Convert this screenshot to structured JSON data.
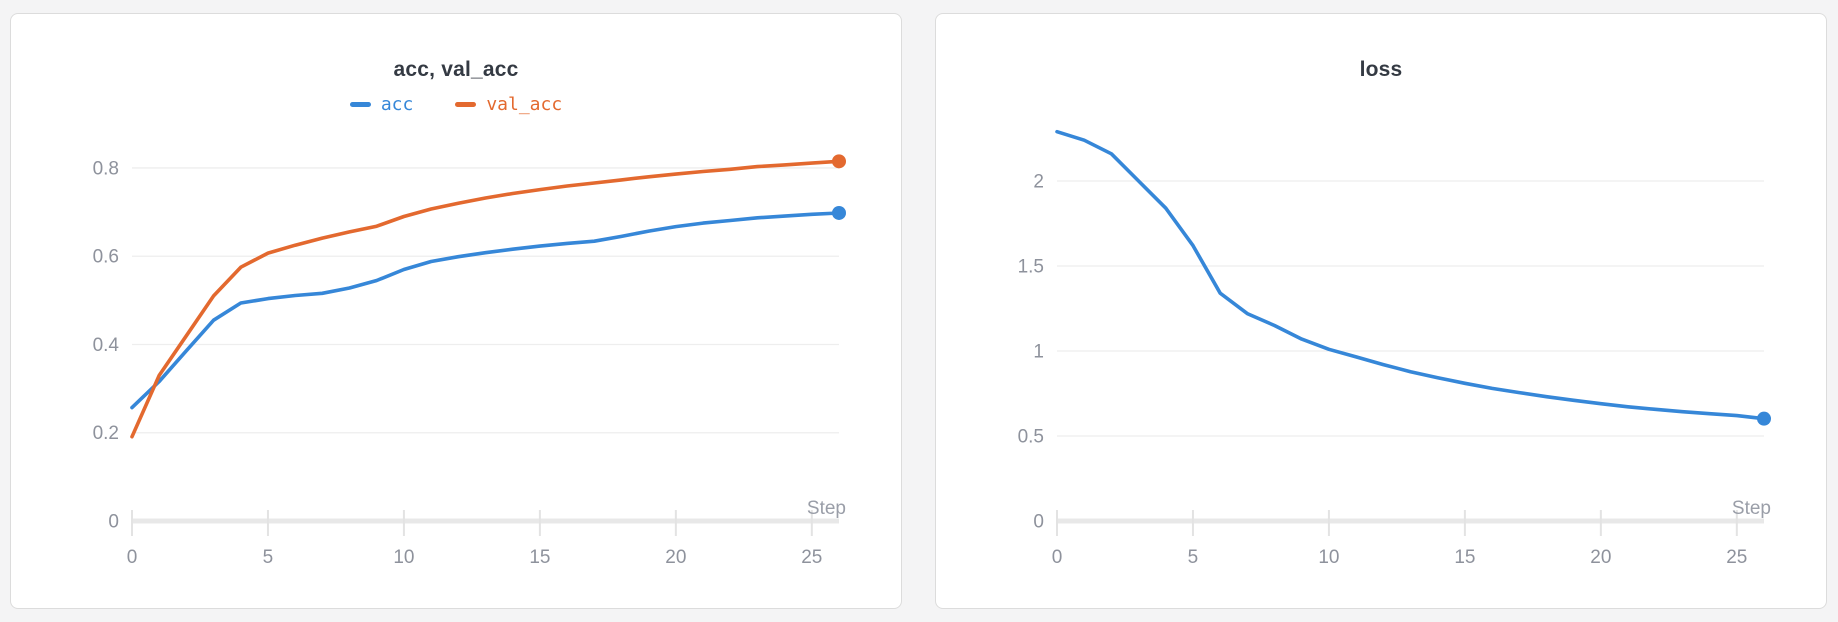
{
  "page": {
    "background": "#f4f4f5"
  },
  "chart_data": [
    {
      "type": "line",
      "title": "acc, val_acc",
      "xlabel": "Step",
      "x": [
        0,
        1,
        2,
        3,
        4,
        5,
        6,
        7,
        8,
        9,
        10,
        11,
        12,
        13,
        14,
        15,
        16,
        17,
        18,
        19,
        20,
        21,
        22,
        23,
        24,
        25,
        26
      ],
      "series": [
        {
          "name": "acc",
          "color": "#3687d8",
          "values": [
            0.257,
            0.316,
            0.386,
            0.455,
            0.494,
            0.504,
            0.511,
            0.516,
            0.528,
            0.545,
            0.57,
            0.588,
            0.599,
            0.608,
            0.616,
            0.623,
            0.629,
            0.634,
            0.645,
            0.657,
            0.667,
            0.675,
            0.681,
            0.687,
            0.691,
            0.695,
            0.698
          ]
        },
        {
          "name": "val_acc",
          "color": "#e3692f",
          "values": [
            0.191,
            0.33,
            0.42,
            0.51,
            0.575,
            0.607,
            0.625,
            0.641,
            0.655,
            0.668,
            0.69,
            0.707,
            0.72,
            0.732,
            0.742,
            0.751,
            0.759,
            0.766,
            0.773,
            0.78,
            0.786,
            0.792,
            0.797,
            0.803,
            0.807,
            0.811,
            0.815
          ]
        }
      ],
      "xlim": [
        0,
        26
      ],
      "ylim": [
        0,
        0.886
      ],
      "xticks": [
        0,
        5,
        10,
        15,
        20,
        25
      ],
      "xtick_labels": [
        "0",
        "5",
        "10",
        "15",
        "20",
        "25"
      ],
      "yticks": [
        0,
        0.2,
        0.4,
        0.6,
        0.8
      ],
      "ytick_labels": [
        "0",
        "0.2",
        "0.4",
        "0.6",
        "0.8"
      ],
      "grid": true,
      "legend_position": "top",
      "end_dot": true
    },
    {
      "type": "line",
      "title": "loss",
      "xlabel": "Step",
      "x": [
        0,
        1,
        2,
        3,
        4,
        5,
        6,
        7,
        8,
        9,
        10,
        11,
        12,
        13,
        14,
        15,
        16,
        17,
        18,
        19,
        20,
        21,
        22,
        23,
        24,
        25,
        26
      ],
      "series": [
        {
          "name": "loss",
          "color": "#3687d8",
          "values": [
            2.29,
            2.24,
            2.16,
            2.0,
            1.84,
            1.62,
            1.34,
            1.22,
            1.15,
            1.07,
            1.01,
            0.965,
            0.92,
            0.878,
            0.843,
            0.81,
            0.78,
            0.755,
            0.731,
            0.71,
            0.69,
            0.672,
            0.657,
            0.643,
            0.631,
            0.62,
            0.602
          ]
        }
      ],
      "xlim": [
        0,
        26
      ],
      "ylim": [
        0,
        2.3
      ],
      "xticks": [
        0,
        5,
        10,
        15,
        20,
        25
      ],
      "xtick_labels": [
        "0",
        "5",
        "10",
        "15",
        "20",
        "25"
      ],
      "yticks": [
        0,
        0.5,
        1,
        1.5,
        2
      ],
      "ytick_labels": [
        "0",
        "0.5",
        "1",
        "1.5",
        "2"
      ],
      "grid": true,
      "legend_position": "none",
      "end_dot": true
    }
  ],
  "colors": {
    "accent_blue": "#3687d8",
    "accent_orange": "#e3692f",
    "grid_line": "#eeeeee",
    "axis_line": "#e8e8e8",
    "tick_mark": "#e3e3e3",
    "tick_label": "#8e929c",
    "title_text": "#343a43"
  }
}
